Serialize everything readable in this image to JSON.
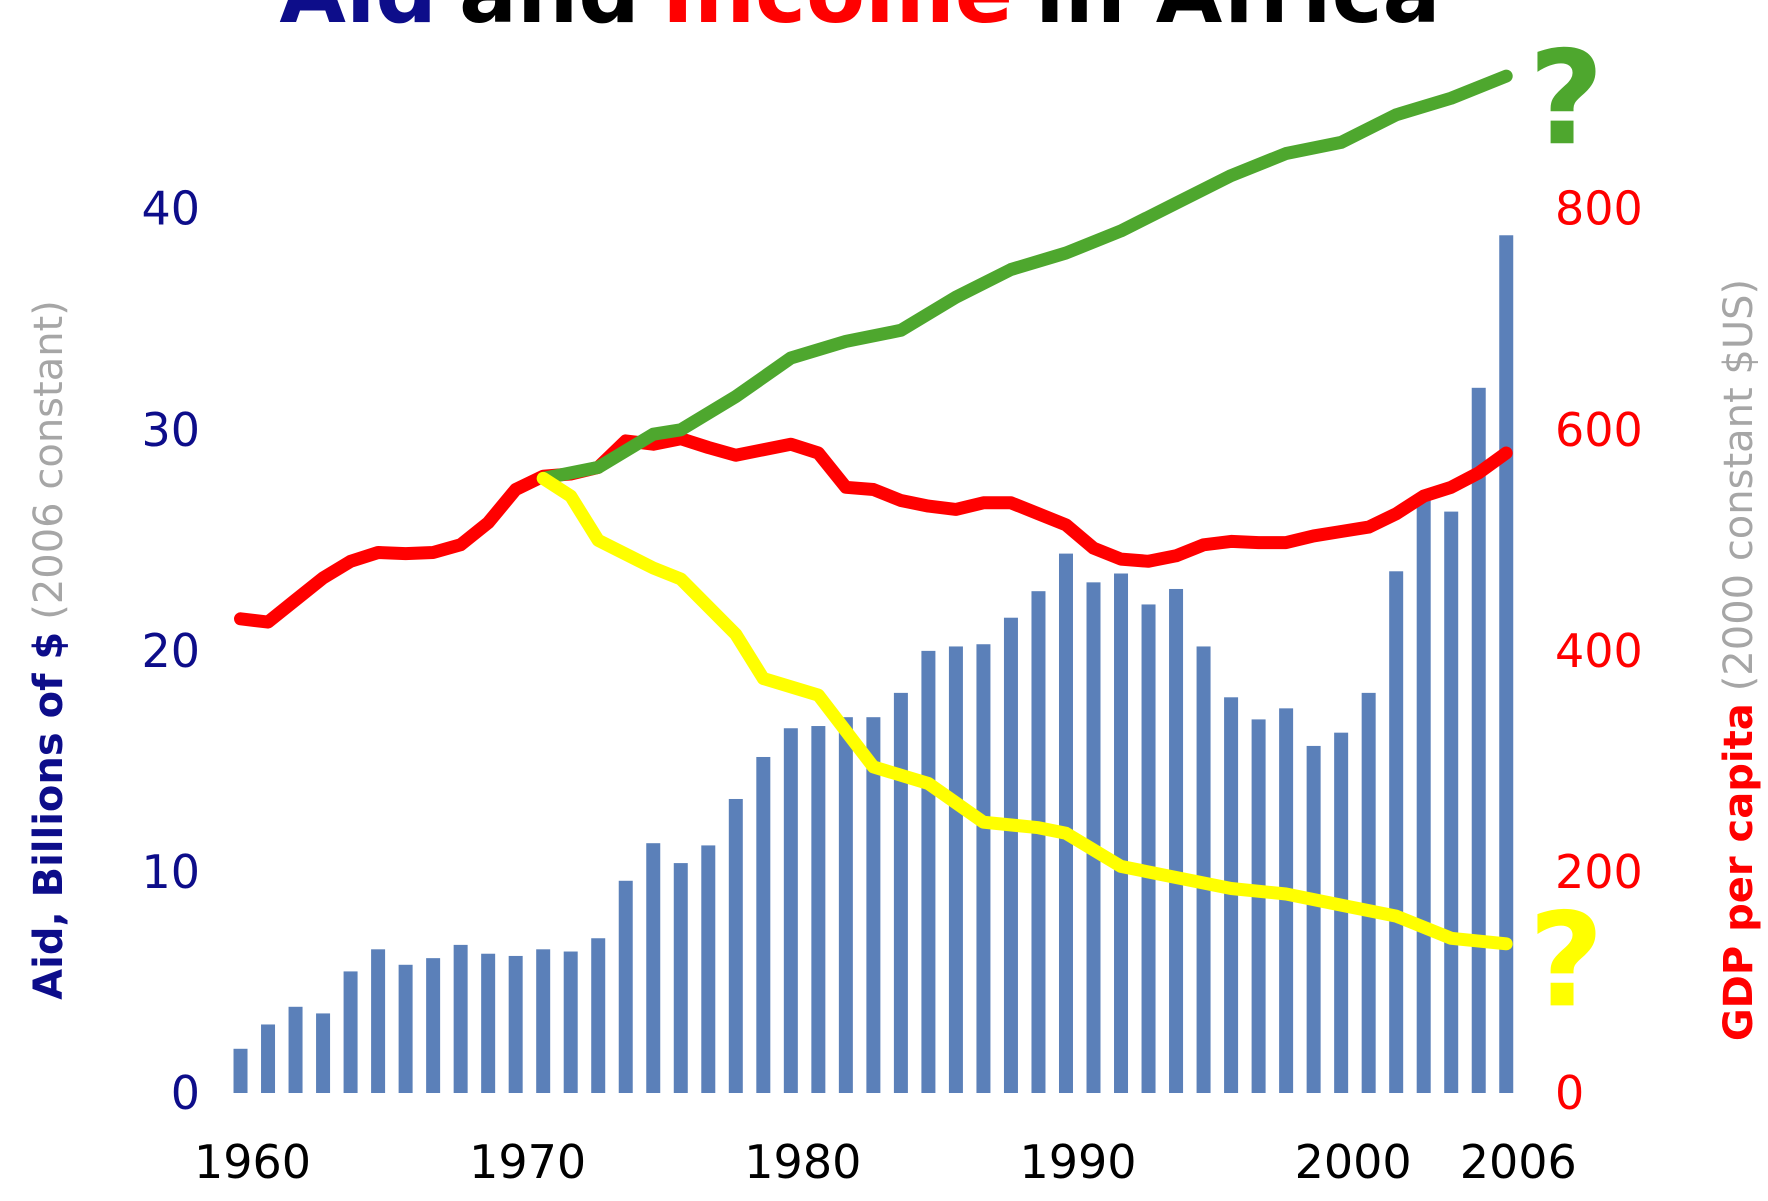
{
  "chart_data": {
    "type": "bar",
    "title": [
      "Aid",
      "and",
      "Income",
      "in Africa"
    ],
    "title_colors": [
      "#0d0d8a",
      "#000000",
      "#ff0000",
      "#000000"
    ],
    "y_label": "Aid, Billions of $",
    "y_label_note": "(2006 constant)",
    "y2_label": "GDP per capita",
    "y2_label_note": "(2000 constant $US)",
    "annotations": [
      {
        "text": "?",
        "x": 2006,
        "y": 900,
        "color": "#4ea72e"
      },
      {
        "text": "?",
        "x": 2006,
        "y": 120,
        "color": "#ffff00"
      }
    ],
    "x": [
      1960,
      1961,
      1962,
      1963,
      1964,
      1965,
      1966,
      1967,
      1968,
      1969,
      1970,
      1971,
      1972,
      1973,
      1974,
      1975,
      1976,
      1977,
      1978,
      1979,
      1980,
      1981,
      1982,
      1983,
      1984,
      1985,
      1986,
      1987,
      1988,
      1989,
      1990,
      1991,
      1992,
      1993,
      1994,
      1995,
      1996,
      1997,
      1998,
      1999,
      2000,
      2001,
      2002,
      2003,
      2004,
      2005,
      2006
    ],
    "values": [
      2.0,
      3.1,
      3.9,
      3.6,
      5.5,
      6.5,
      5.8,
      6.1,
      6.7,
      6.3,
      6.2,
      6.5,
      6.4,
      7.0,
      9.6,
      11.3,
      10.4,
      11.2,
      13.3,
      15.2,
      16.5,
      16.6,
      17.0,
      17.0,
      18.1,
      20.0,
      20.2,
      20.3,
      21.5,
      22.7,
      24.4,
      23.1,
      23.5,
      22.1,
      22.8,
      20.2,
      17.9,
      16.9,
      17.4,
      15.7,
      16.3,
      18.1,
      23.6,
      27.0,
      26.3,
      31.9,
      38.8
    ],
    "color": "#5b80b9",
    "series": [
      {
        "type": "line",
        "axis": "y2",
        "color": "#ff0000",
        "x": [
          1960,
          1961,
          1962,
          1963,
          1964,
          1965,
          1966,
          1967,
          1968,
          1969,
          1970,
          1971,
          1972,
          1973,
          1974,
          1975,
          1976,
          1977,
          1978,
          1979,
          1980,
          1981,
          1982,
          1983,
          1984,
          1985,
          1986,
          1987,
          1988,
          1989,
          1990,
          1991,
          1992,
          1993,
          1994,
          1995,
          1996,
          1997,
          1998,
          1999,
          2000,
          2001,
          2002,
          2003,
          2004,
          2005,
          2006
        ],
        "values": [
          429,
          426,
          446,
          466,
          481,
          489,
          488,
          489,
          496,
          516,
          546,
          558,
          560,
          566,
          590,
          587,
          592,
          584,
          577,
          582,
          587,
          579,
          548,
          546,
          536,
          531,
          528,
          534,
          534,
          524,
          514,
          493,
          483,
          481,
          486,
          496,
          499,
          498,
          498,
          504,
          508,
          512,
          524,
          540,
          548,
          561,
          579
        ]
      },
      {
        "type": "line",
        "axis": "y2",
        "color": "#4ea72e",
        "x": [
          1971,
          1973,
          1975,
          1976,
          1978,
          1980,
          1982,
          1984,
          1986,
          1988,
          1990,
          1992,
          1994,
          1996,
          1998,
          2000,
          2002,
          2004,
          2006
        ],
        "values": [
          556,
          566,
          596,
          600,
          630,
          665,
          680,
          690,
          720,
          745,
          760,
          780,
          805,
          830,
          850,
          860,
          885,
          900,
          920
        ]
      },
      {
        "type": "line",
        "axis": "y2",
        "color": "#ffff00",
        "x": [
          1971,
          1972,
          1973,
          1975,
          1976,
          1978,
          1979,
          1981,
          1983,
          1985,
          1987,
          1989,
          1990,
          1992,
          1994,
          1996,
          1998,
          2000,
          2002,
          2004,
          2006
        ],
        "values": [
          556,
          540,
          500,
          475,
          465,
          415,
          375,
          360,
          295,
          280,
          245,
          240,
          235,
          205,
          195,
          185,
          180,
          170,
          160,
          140,
          135
        ]
      }
    ],
    "xlim": [
      1959,
      2006.5
    ],
    "xticks": [
      1960,
      1970,
      1980,
      1990,
      2000,
      2006
    ],
    "ylim": [
      0,
      47
    ],
    "yticks": [
      0,
      10,
      20,
      30,
      40
    ],
    "y2lim": [
      0,
      940
    ],
    "y2ticks": [
      0,
      200,
      400,
      600,
      800
    ],
    "y_tick_color": "#0d0d8a",
    "y2_tick_color": "#ff0000",
    "grid": true
  }
}
